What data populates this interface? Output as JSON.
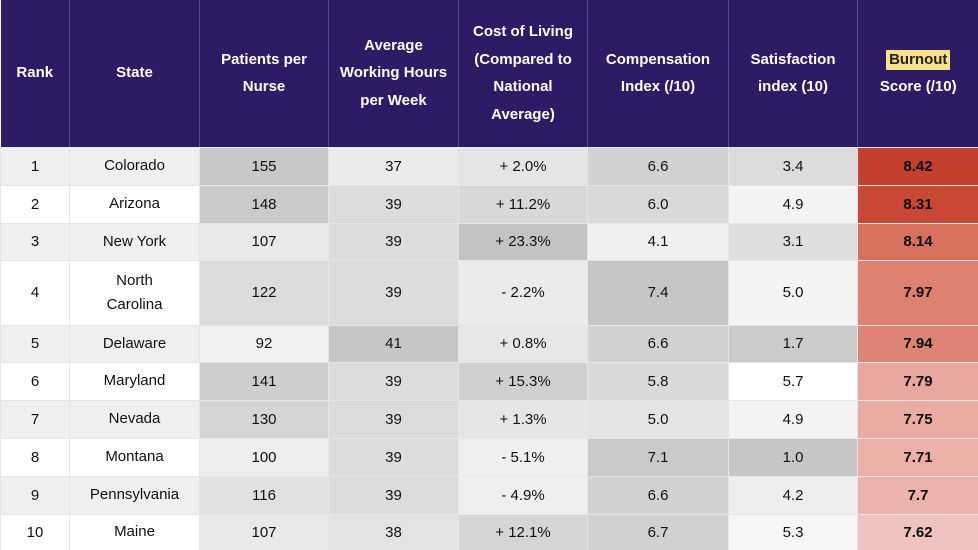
{
  "colors": {
    "header_bg": "#2e1b66",
    "header_text": "#ffffff",
    "row_alt_bg": "#efefef",
    "row_bg": "#ffffff",
    "cell_border": "#e7e4ea",
    "highlight_bg": "#f6e28c",
    "highlight_text": "#262200",
    "burnout_scale_max": "#c4402e",
    "burnout_scale_min": "#f1c3c0"
  },
  "burnout_header": {
    "highlight_word": "Burnout",
    "rest": "Score (/10)"
  },
  "chart_data": {
    "type": "table",
    "columns": [
      "Rank",
      "State",
      "Patients per Nurse",
      "Average Working Hours per Week",
      "Cost of Living (Compared to National Average)",
      "Compensation Index (/10)",
      "Satisfaction index (10)",
      "Burnout Score (/10)"
    ],
    "rows": [
      {
        "rank": "1",
        "state": "Colorado",
        "patients_per_nurse": "155",
        "avg_working_hours": "37",
        "cost_of_living": "+ 2.0%",
        "compensation_index": "6.6",
        "satisfaction_index": "3.4",
        "burnout_score": "8.42",
        "cell_colors": {
          "patients_per_nurse": "#c8c8c8",
          "avg_working_hours": "#ececec",
          "cost_of_living": "#e5e5e5",
          "compensation_index": "#d2d2d2",
          "satisfaction_index": "#dcdcdc",
          "burnout_score": "#c4402e"
        }
      },
      {
        "rank": "2",
        "state": "Arizona",
        "patients_per_nurse": "148",
        "avg_working_hours": "39",
        "cost_of_living": "+ 11.2%",
        "compensation_index": "6.0",
        "satisfaction_index": "4.9",
        "burnout_score": "8.31",
        "cell_colors": {
          "patients_per_nurse": "#cacaca",
          "avg_working_hours": "#dcdcdc",
          "cost_of_living": "#d8d8d8",
          "compensation_index": "#d9d9d9",
          "satisfaction_index": "#f4f4f4",
          "burnout_score": "#c94735"
        }
      },
      {
        "rank": "3",
        "state": "New York",
        "patients_per_nurse": "107",
        "avg_working_hours": "39",
        "cost_of_living": "+ 23.3%",
        "compensation_index": "4.1",
        "satisfaction_index": "3.1",
        "burnout_score": "8.14",
        "cell_colors": {
          "patients_per_nurse": "#e9e9e9",
          "avg_working_hours": "#dcdcdc",
          "cost_of_living": "#c3c3c3",
          "compensation_index": "#f0f0f0",
          "satisfaction_index": "#dedede",
          "burnout_score": "#d8705e"
        }
      },
      {
        "rank": "4",
        "state": "North\nCarolina",
        "patients_per_nurse": "122",
        "avg_working_hours": "39",
        "cost_of_living": "- 2.2%",
        "compensation_index": "7.4",
        "satisfaction_index": "5.0",
        "burnout_score": "7.97",
        "cell_colors": {
          "patients_per_nurse": "#dcdcdc",
          "avg_working_hours": "#dcdcdc",
          "cost_of_living": "#ebebeb",
          "compensation_index": "#c5c5c5",
          "satisfaction_index": "#f4f4f4",
          "burnout_score": "#dd8171"
        }
      },
      {
        "rank": "5",
        "state": "Delaware",
        "patients_per_nurse": "92",
        "avg_working_hours": "41",
        "cost_of_living": "+ 0.8%",
        "compensation_index": "6.6",
        "satisfaction_index": "1.7",
        "burnout_score": "7.94",
        "cell_colors": {
          "patients_per_nurse": "#f2f2f2",
          "avg_working_hours": "#c6c6c6",
          "cost_of_living": "#e7e7e7",
          "compensation_index": "#d2d2d2",
          "satisfaction_index": "#cbcbcb",
          "burnout_score": "#de8476"
        }
      },
      {
        "rank": "6",
        "state": "Maryland",
        "patients_per_nurse": "141",
        "avg_working_hours": "39",
        "cost_of_living": "+ 15.3%",
        "compensation_index": "5.8",
        "satisfaction_index": "5.7",
        "burnout_score": "7.79",
        "cell_colors": {
          "patients_per_nurse": "#cecece",
          "avg_working_hours": "#dcdcdc",
          "cost_of_living": "#d0d0d0",
          "compensation_index": "#dadada",
          "satisfaction_index": "#ffffff",
          "burnout_score": "#e7a79e"
        }
      },
      {
        "rank": "7",
        "state": "Nevada",
        "patients_per_nurse": "130",
        "avg_working_hours": "39",
        "cost_of_living": "+ 1.3%",
        "compensation_index": "5.0",
        "satisfaction_index": "4.9",
        "burnout_score": "7.75",
        "cell_colors": {
          "patients_per_nurse": "#d5d5d5",
          "avg_working_hours": "#dcdcdc",
          "cost_of_living": "#e6e6e6",
          "compensation_index": "#e4e4e4",
          "satisfaction_index": "#f4f4f4",
          "burnout_score": "#e9aba2"
        }
      },
      {
        "rank": "8",
        "state": "Montana",
        "patients_per_nurse": "100",
        "avg_working_hours": "39",
        "cost_of_living": "- 5.1%",
        "compensation_index": "7.1",
        "satisfaction_index": "1.0",
        "burnout_score": "7.71",
        "cell_colors": {
          "patients_per_nurse": "#ededed",
          "avg_working_hours": "#dcdcdc",
          "cost_of_living": "#efefef",
          "compensation_index": "#c9c9c9",
          "satisfaction_index": "#c6c6c6",
          "burnout_score": "#ebb0a8"
        }
      },
      {
        "rank": "9",
        "state": "Pennsylvania",
        "patients_per_nurse": "116",
        "avg_working_hours": "39",
        "cost_of_living": "- 4.9%",
        "compensation_index": "6.6",
        "satisfaction_index": "4.2",
        "burnout_score": "7.7",
        "cell_colors": {
          "patients_per_nurse": "#e1e1e1",
          "avg_working_hours": "#dcdcdc",
          "cost_of_living": "#efefef",
          "compensation_index": "#d2d2d2",
          "satisfaction_index": "#eeeeee",
          "burnout_score": "#ecb3ac"
        }
      },
      {
        "rank": "10",
        "state": "Maine",
        "patients_per_nurse": "107",
        "avg_working_hours": "38",
        "cost_of_living": "+ 12.1%",
        "compensation_index": "6.7",
        "satisfaction_index": "5.3",
        "burnout_score": "7.62",
        "cell_colors": {
          "patients_per_nurse": "#e9e9e9",
          "avg_working_hours": "#e3e3e3",
          "cost_of_living": "#d5d5d5",
          "compensation_index": "#d1d1d1",
          "satisfaction_index": "#f6f6f6",
          "burnout_score": "#f1c3c0"
        }
      }
    ]
  }
}
